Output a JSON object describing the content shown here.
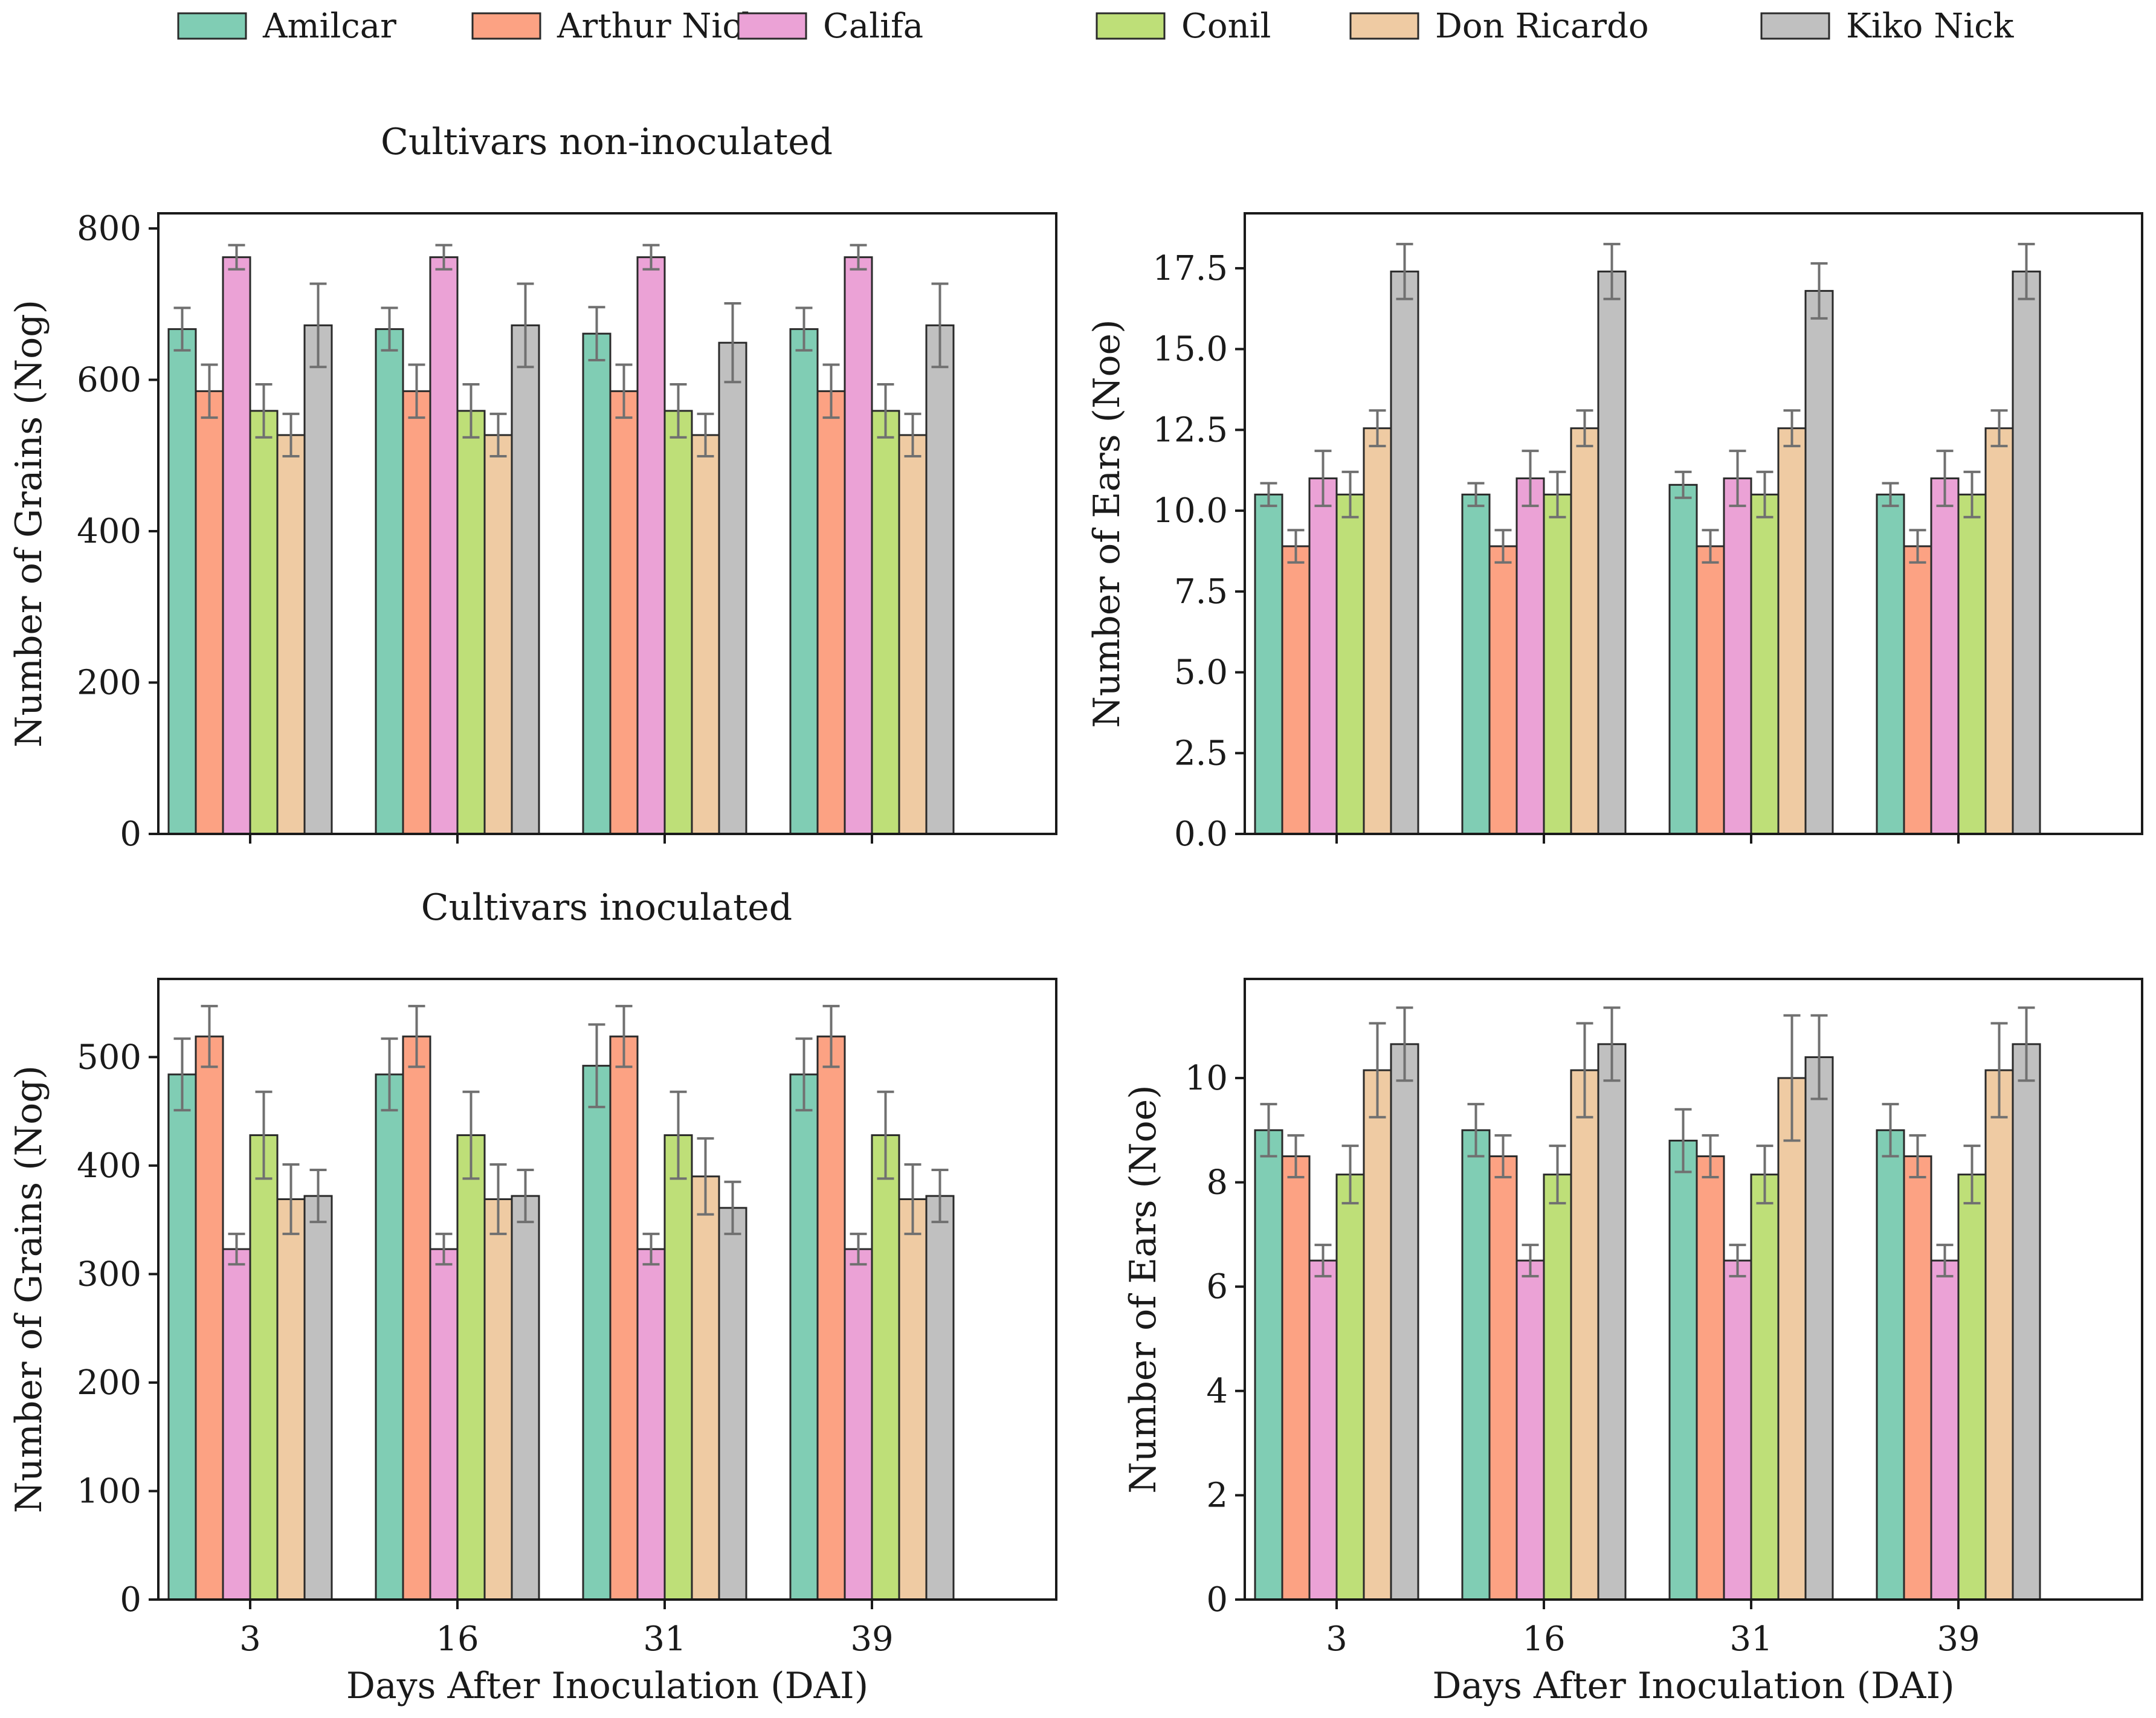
{
  "colors": {
    "Amilcar": "#80cdb4",
    "Arthur Nick": "#fca283",
    "Califa": "#eba2d6",
    "Conil": "#bedf78",
    "Don Ricardo": "#efcba3",
    "Kiko Nick": "#c0c0c0"
  },
  "legend": {
    "entries": [
      "Amilcar",
      "Arthur Nick",
      "Califa",
      "Conil",
      "Don Ricardo",
      "Kiko Nick"
    ]
  },
  "chart_data": [
    {
      "type": "bar",
      "panel": "top-left",
      "title": "Cultivars non-inoculated",
      "xlabel": "",
      "ylabel": "Number of Grains (Nog)",
      "categories": [
        "3",
        "16",
        "31",
        "39"
      ],
      "show_tick_labels": false,
      "ylim": [
        0,
        820
      ],
      "yticks": [
        0,
        200,
        400,
        600,
        800
      ],
      "ytick_labels": [
        "0",
        "200",
        "400",
        "600",
        "800"
      ],
      "series": [
        {
          "name": "Amilcar",
          "values": [
            667,
            667,
            661,
            667
          ],
          "errors": [
            28,
            28,
            35,
            28
          ]
        },
        {
          "name": "Arthur Nick",
          "values": [
            585,
            585,
            585,
            585
          ],
          "errors": [
            35,
            35,
            35,
            35
          ]
        },
        {
          "name": "Califa",
          "values": [
            762,
            762,
            762,
            762
          ],
          "errors": [
            16,
            16,
            16,
            16
          ]
        },
        {
          "name": "Conil",
          "values": [
            559,
            559,
            559,
            559
          ],
          "errors": [
            35,
            35,
            35,
            35
          ]
        },
        {
          "name": "Don Ricardo",
          "values": [
            527,
            527,
            527,
            527
          ],
          "errors": [
            28,
            28,
            28,
            28
          ]
        },
        {
          "name": "Kiko Nick",
          "values": [
            672,
            672,
            649,
            672
          ],
          "errors": [
            55,
            55,
            52,
            55
          ]
        }
      ]
    },
    {
      "type": "bar",
      "panel": "top-right",
      "title": "",
      "xlabel": "",
      "ylabel": "Number of Ears (Noe)",
      "categories": [
        "3",
        "16",
        "31",
        "39"
      ],
      "show_tick_labels": false,
      "ylim": [
        0,
        19.2
      ],
      "yticks": [
        0,
        2.5,
        5,
        7.5,
        10,
        12.5,
        15,
        17.5
      ],
      "ytick_labels": [
        "0.0",
        "2.5",
        "5.0",
        "7.5",
        "10.0",
        "12.5",
        "15.0",
        "17.5"
      ],
      "series": [
        {
          "name": "Amilcar",
          "values": [
            10.5,
            10.5,
            10.8,
            10.5
          ],
          "errors": [
            0.35,
            0.35,
            0.4,
            0.35
          ]
        },
        {
          "name": "Arthur Nick",
          "values": [
            8.9,
            8.9,
            8.9,
            8.9
          ],
          "errors": [
            0.5,
            0.5,
            0.5,
            0.5
          ]
        },
        {
          "name": "Califa",
          "values": [
            11.0,
            11.0,
            11.0,
            11.0
          ],
          "errors": [
            0.85,
            0.85,
            0.85,
            0.85
          ]
        },
        {
          "name": "Conil",
          "values": [
            10.5,
            10.5,
            10.5,
            10.5
          ],
          "errors": [
            0.7,
            0.7,
            0.7,
            0.7
          ]
        },
        {
          "name": "Don Ricardo",
          "values": [
            12.55,
            12.55,
            12.55,
            12.55
          ],
          "errors": [
            0.55,
            0.55,
            0.55,
            0.55
          ]
        },
        {
          "name": "Kiko Nick",
          "values": [
            17.4,
            17.4,
            16.8,
            17.4
          ],
          "errors": [
            0.85,
            0.85,
            0.85,
            0.85
          ]
        }
      ]
    },
    {
      "type": "bar",
      "panel": "bottom-left",
      "title": "Cultivars inoculated",
      "xlabel": "Days After Inoculation (DAI)",
      "ylabel": "Number of Grains (Nog)",
      "categories": [
        "3",
        "16",
        "31",
        "39"
      ],
      "show_tick_labels": true,
      "ylim": [
        0,
        572
      ],
      "yticks": [
        0,
        100,
        200,
        300,
        400,
        500
      ],
      "ytick_labels": [
        "0",
        "100",
        "200",
        "300",
        "400",
        "500"
      ],
      "series": [
        {
          "name": "Amilcar",
          "values": [
            484,
            484,
            492,
            484
          ],
          "errors": [
            33,
            33,
            38,
            33
          ]
        },
        {
          "name": "Arthur Nick",
          "values": [
            519,
            519,
            519,
            519
          ],
          "errors": [
            28,
            28,
            28,
            28
          ]
        },
        {
          "name": "Califa",
          "values": [
            323,
            323,
            323,
            323
          ],
          "errors": [
            14,
            14,
            14,
            14
          ]
        },
        {
          "name": "Conil",
          "values": [
            428,
            428,
            428,
            428
          ],
          "errors": [
            40,
            40,
            40,
            40
          ]
        },
        {
          "name": "Don Ricardo",
          "values": [
            369,
            369,
            390,
            369
          ],
          "errors": [
            32,
            32,
            35,
            32
          ]
        },
        {
          "name": "Kiko Nick",
          "values": [
            372,
            372,
            361,
            372
          ],
          "errors": [
            24,
            24,
            24,
            24
          ]
        }
      ]
    },
    {
      "type": "bar",
      "panel": "bottom-right",
      "title": "",
      "xlabel": "Days After Inoculation (DAI)",
      "ylabel": "Number of Ears (Noe)",
      "categories": [
        "3",
        "16",
        "31",
        "39"
      ],
      "show_tick_labels": true,
      "ylim": [
        0,
        11.9
      ],
      "yticks": [
        0,
        2,
        4,
        6,
        8,
        10
      ],
      "ytick_labels": [
        "0",
        "2",
        "4",
        "6",
        "8",
        "10"
      ],
      "series": [
        {
          "name": "Amilcar",
          "values": [
            9.0,
            9.0,
            8.8,
            9.0
          ],
          "errors": [
            0.5,
            0.5,
            0.6,
            0.5
          ]
        },
        {
          "name": "Arthur Nick",
          "values": [
            8.5,
            8.5,
            8.5,
            8.5
          ],
          "errors": [
            0.4,
            0.4,
            0.4,
            0.4
          ]
        },
        {
          "name": "Califa",
          "values": [
            6.5,
            6.5,
            6.5,
            6.5
          ],
          "errors": [
            0.3,
            0.3,
            0.3,
            0.3
          ]
        },
        {
          "name": "Conil",
          "values": [
            8.15,
            8.15,
            8.15,
            8.15
          ],
          "errors": [
            0.55,
            0.55,
            0.55,
            0.55
          ]
        },
        {
          "name": "Don Ricardo",
          "values": [
            10.15,
            10.15,
            10.0,
            10.15
          ],
          "errors": [
            0.9,
            0.9,
            1.2,
            0.9
          ]
        },
        {
          "name": "Kiko Nick",
          "values": [
            10.65,
            10.65,
            10.4,
            10.65
          ],
          "errors": [
            0.7,
            0.7,
            0.8,
            0.7
          ]
        }
      ]
    }
  ]
}
